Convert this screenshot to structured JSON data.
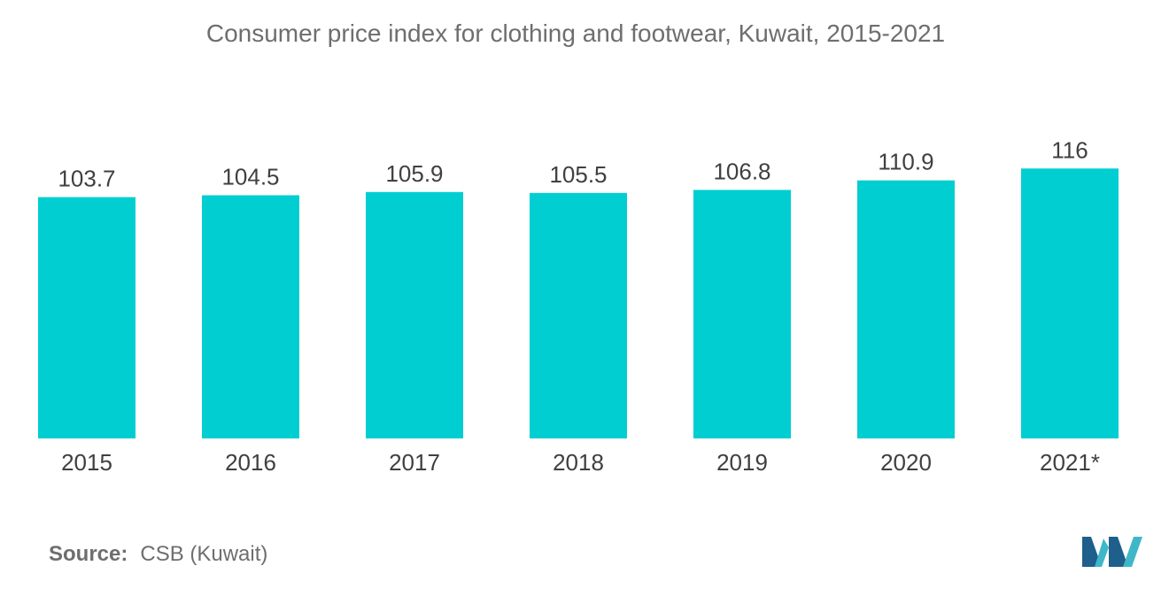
{
  "chart_data": {
    "type": "bar",
    "title": "Consumer price index for clothing and footwear, Kuwait, 2015-2021",
    "categories": [
      "2015",
      "2016",
      "2017",
      "2018",
      "2019",
      "2020",
      "2021*"
    ],
    "values": [
      103.7,
      104.5,
      105.9,
      105.5,
      106.8,
      110.9,
      116
    ],
    "value_labels": [
      "103.7",
      "104.5",
      "105.9",
      "105.5",
      "106.8",
      "110.9",
      "116"
    ],
    "xlabel": "",
    "ylabel": "",
    "ylim": [
      0,
      118
    ],
    "grid": false,
    "legend": "none",
    "bar_color": "#00ced1"
  },
  "source": {
    "label": "Source:",
    "text": "CSB (Kuwait)"
  },
  "logo": {
    "icon": "mordor-intelligence-logo-icon",
    "colors": [
      "#1f5f8b",
      "#3fb7c8"
    ]
  }
}
